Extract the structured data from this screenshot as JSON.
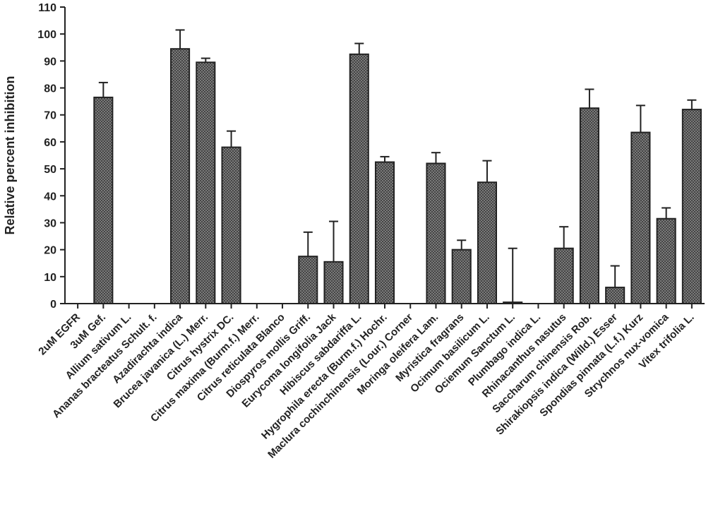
{
  "chart_data": {
    "type": "bar",
    "title": "",
    "xlabel": "",
    "ylabel": "Relative percent inhibition",
    "ylim": [
      0,
      110
    ],
    "yticks": [
      0,
      10,
      20,
      30,
      40,
      50,
      60,
      70,
      80,
      90,
      100,
      110
    ],
    "grid": false,
    "bar_fill": "#6f6f6f",
    "categories": [
      "2uM EGFR",
      "3uM Gef.",
      "Allium sativum L.",
      "Ananas bracteatus Schult. f.",
      "Azadirachta indica",
      "Brucea javanica (L.) Merr.",
      "Citrus hystrix DC.",
      "Citrus maxima (Burm.f.) Merr.",
      "Citrus reticulata Blanco",
      "Diospyros mollis Griff.",
      "Eurycoma longifolia Jack",
      "Hibiscus sabdariffa L.",
      "Hygrophila erecta (Burm.f.) Hochr.",
      "Maclura cochinchinensis (Lour.) Corner",
      "Moringa oleifera Lam.",
      "Myristica fragrans",
      "Ocimum basilicum L.",
      "Ociemum Sanctum L.",
      "Plumbago indica L.",
      "Rhinacanthus nasutus",
      "Saccharum chinensis Rob.",
      "Shirakiopsis indica (Willd.) Esser",
      "Spondias pinnata (L.f.) Kurz",
      "Strychnos nux-vomica",
      "Vitex trifolia L."
    ],
    "values": [
      0,
      76.5,
      0,
      0,
      94.5,
      89.5,
      58,
      0,
      0,
      17.5,
      15.5,
      92.5,
      52.5,
      0,
      52,
      20,
      45,
      0.5,
      0,
      20.5,
      72.5,
      6,
      63.5,
      31.5,
      72
    ],
    "errors": [
      0,
      5.5,
      0,
      0,
      7,
      1.5,
      6,
      0,
      0,
      9,
      15,
      4,
      2,
      0,
      4,
      3.5,
      8,
      20,
      0,
      8,
      7,
      8,
      10,
      4,
      3.5
    ]
  }
}
